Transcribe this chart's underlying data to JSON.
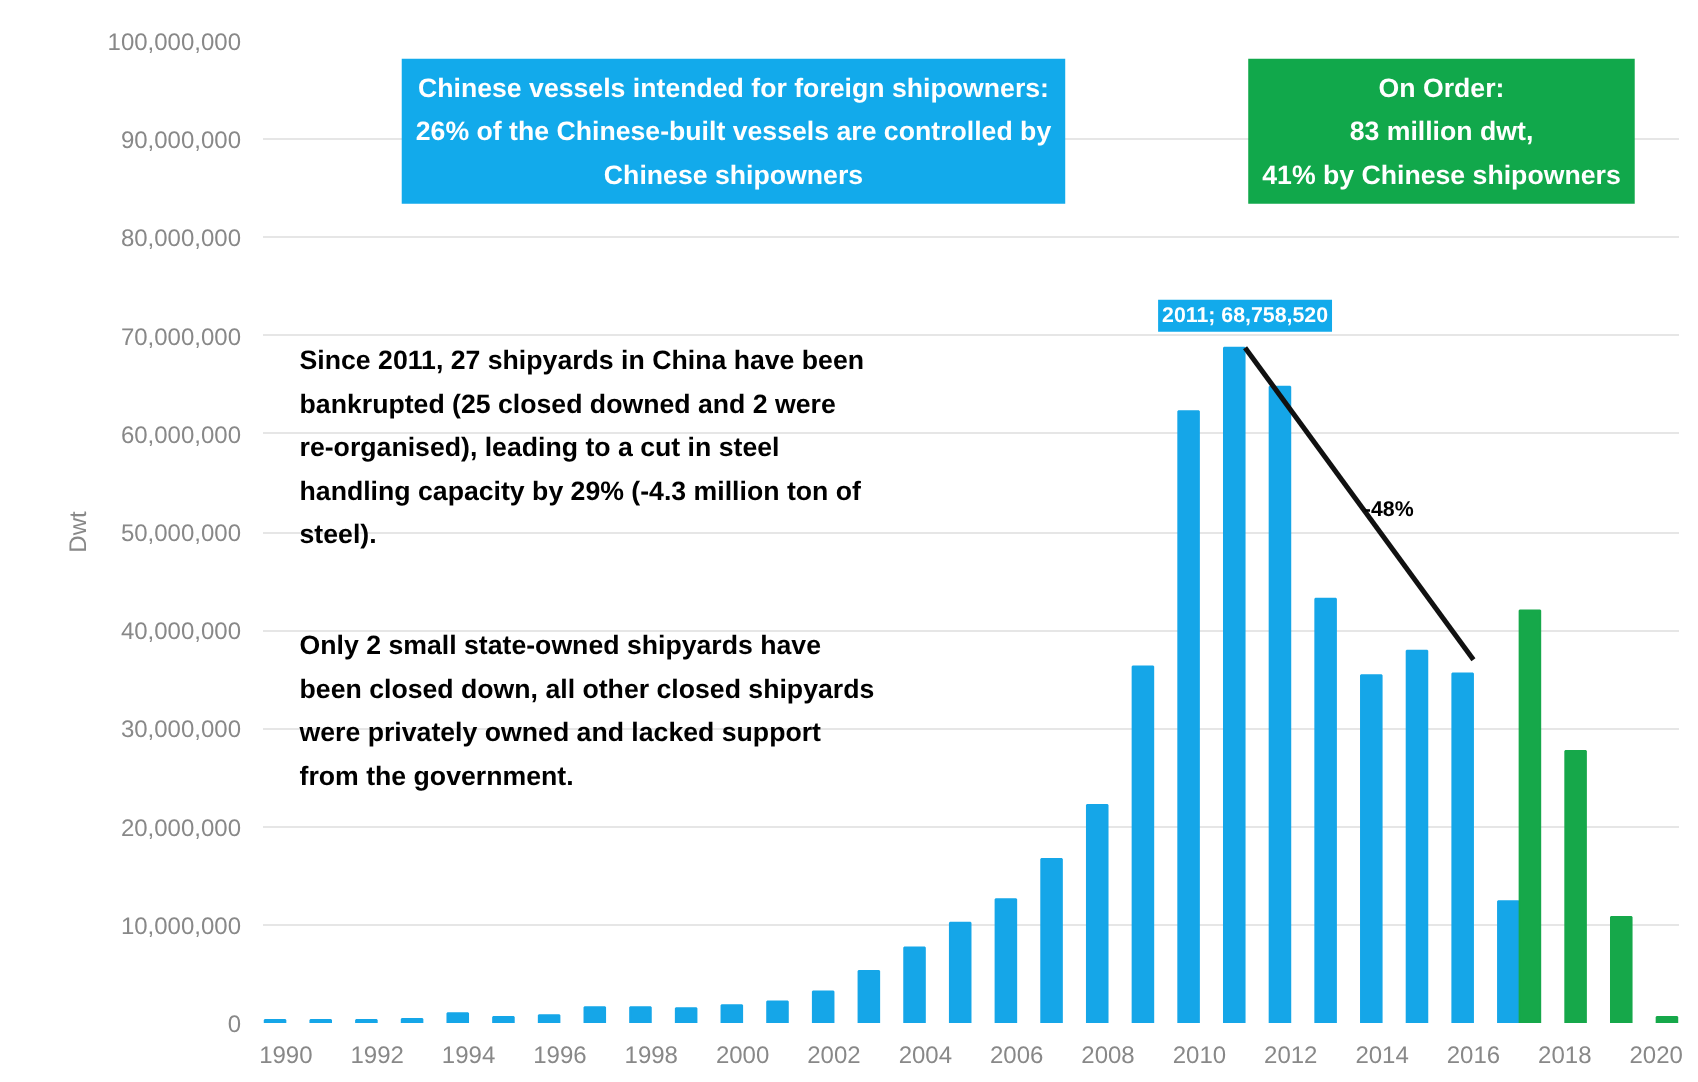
{
  "chart_data": {
    "type": "bar",
    "ylabel": "Dwt",
    "x": [
      1990,
      1991,
      1992,
      1993,
      1994,
      1995,
      1996,
      1997,
      1998,
      1999,
      2000,
      2001,
      2002,
      2003,
      2004,
      2005,
      2006,
      2007,
      2008,
      2009,
      2010,
      2011,
      2012,
      2013,
      2014,
      2015,
      2016,
      2017
    ],
    "series": [
      {
        "color": "#15a6e8",
        "values": [
          300000,
          300000,
          300000,
          400000,
          1000000,
          600000,
          800000,
          1600000,
          1600000,
          1500000,
          1800000,
          2200000,
          3200000,
          5300000,
          7700000,
          10200000,
          12600000,
          16700000,
          22200000,
          36300000,
          62300000,
          68758520,
          64800000,
          43200000,
          35400000,
          37900000,
          35600000,
          12400000
        ]
      },
      {
        "color": "#16a84a",
        "x": [
          2017,
          2018,
          2019,
          2020
        ],
        "values": [
          42000000,
          27700000,
          10800000,
          600000
        ]
      },
      {
        "type": "line",
        "color": "#111111",
        "x": [
          2011,
          2016
        ],
        "values": [
          68758520,
          37000000
        ]
      }
    ],
    "xlim": [
      1989.5,
      2020.5
    ],
    "xticks": [
      1990,
      1992,
      1994,
      1996,
      1998,
      2000,
      2002,
      2004,
      2006,
      2008,
      2010,
      2012,
      2014,
      2016,
      2018,
      2020
    ],
    "ylim": [
      0,
      100000000
    ],
    "yticks": [
      0,
      {
        "value": 10000000,
        "label": "10,000,000"
      },
      {
        "value": 20000000,
        "label": "20,000,000"
      },
      {
        "value": 30000000,
        "label": "30,000,000"
      },
      {
        "value": 40000000,
        "label": "40,000,000"
      },
      {
        "value": 50000000,
        "label": "50,000,000"
      },
      {
        "value": 60000000,
        "label": "60,000,000"
      },
      {
        "value": 70000000,
        "label": "70,000,000"
      },
      {
        "value": 80000000,
        "label": "80,000,000"
      },
      {
        "value": 90000000,
        "label": "90,000,000"
      },
      {
        "value": 100000000,
        "label": "100,000,000"
      }
    ],
    "grid": "y",
    "annotations": [
      "Chinese vessels intended for foreign shipowners:\n26% of the Chinese-built vessels are controlled by\nChinese shipowners",
      "On Order:\n83 million dwt,\n41% by Chinese shipowners",
      "Since 2011, 27 shipyards in China have been\nbankrupted (25 closed downed and 2 were\nre-organised), leading to a cut in steel\nhandling capacity by 29% (-4.3 million ton of\nsteel).",
      "Only 2 small state-owned shipyards have\nbeen closed down, all other closed shipyards\nwere privately owned and lacked support\nfrom the government.",
      {
        "text": "2011; 68,758,520",
        "x": 2011,
        "y": 68758520
      },
      "-48%"
    ]
  }
}
